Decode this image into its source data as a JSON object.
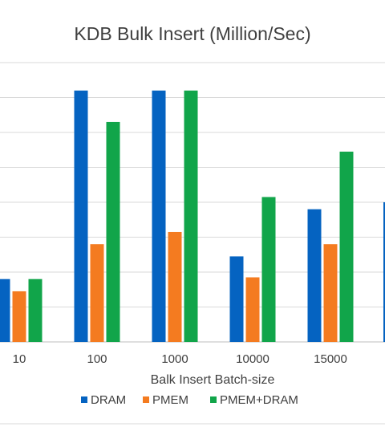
{
  "chart_data": {
    "type": "bar",
    "title": "KDB Bulk Insert (Million/Sec)",
    "xlabel": "Balk Insert Batch-size",
    "ylabel": "",
    "categories": [
      "10",
      "100",
      "1000",
      "10000",
      "15000"
    ],
    "series": [
      {
        "name": "DRAM",
        "color": "#0563C1",
        "values": [
          1.8,
          7.2,
          7.2,
          2.45,
          3.8
        ]
      },
      {
        "name": "PMEM",
        "color": "#F47B20",
        "values": [
          1.45,
          2.8,
          3.15,
          1.85,
          2.8
        ]
      },
      {
        "name": "PMEM+DRAM",
        "color": "#11A54A",
        "values": [
          1.8,
          6.3,
          7.2,
          4.15,
          5.45
        ]
      }
    ],
    "ylim": [
      0,
      8
    ],
    "grid": true,
    "legend": "bottom"
  }
}
